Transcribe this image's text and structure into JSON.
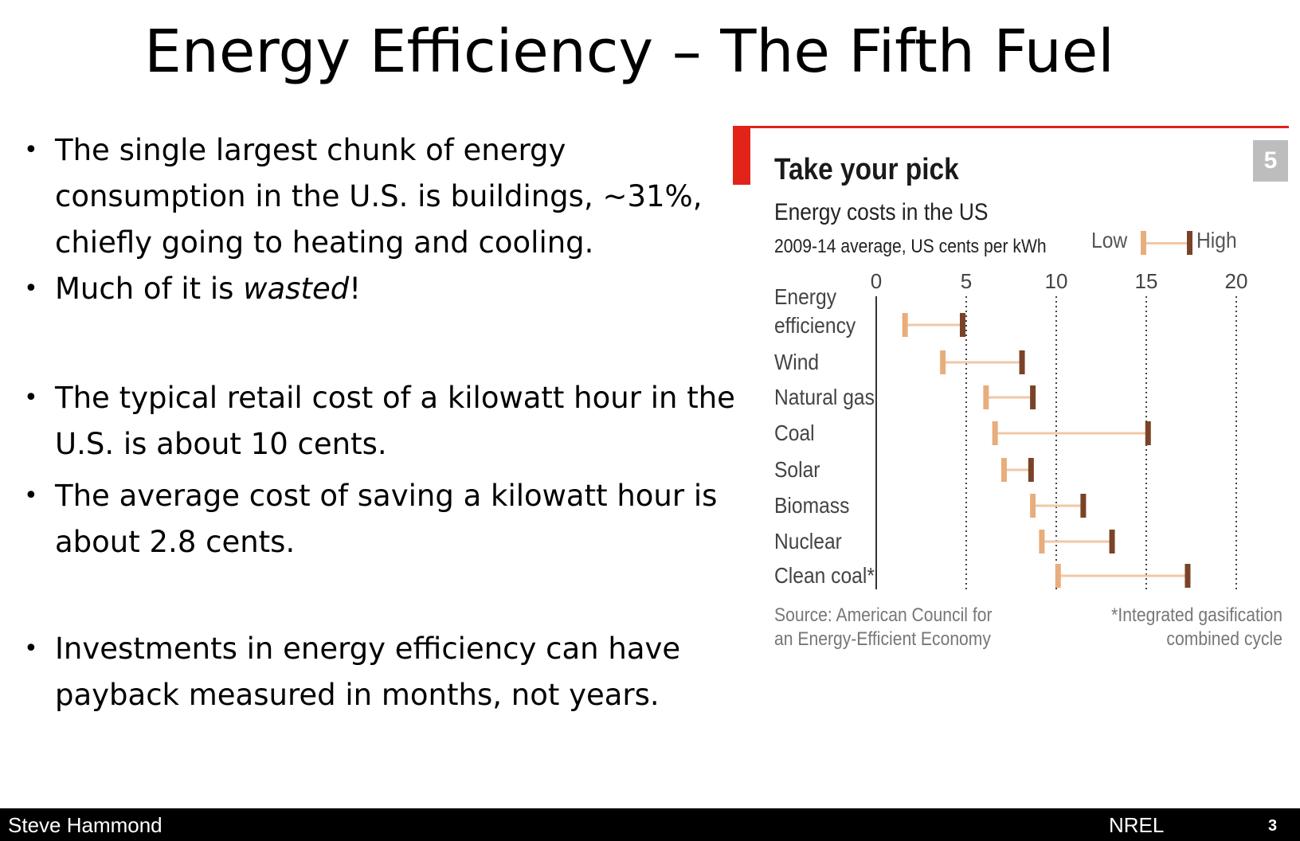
{
  "slide": {
    "title": "Energy Efficiency – The Fifth Fuel"
  },
  "bullets": [
    {
      "text": "The single largest chunk of energy consumption in the U.S. is buildings, ~31%, chiefly going to heating and cooling."
    },
    {
      "pre": "Much of it is ",
      "em": "wasted",
      "post": "!"
    },
    {
      "text": "The typical retail cost of a kilowatt hour in the U.S. is about 10 cents."
    },
    {
      "text": "The average cost of saving a kilowatt hour is about 2.8 cents."
    },
    {
      "text": "Investments in energy efficiency can have payback measured in months, not years."
    }
  ],
  "bullet_glyph": "•",
  "panel": {
    "number": "5",
    "source": "Source: American Council for\nan Energy-Efficient Economy",
    "footnote": "*Integrated gasification\ncombined cycle",
    "colors": {
      "accent_red": "#e2231a",
      "badge_gray": "#bdbdbd",
      "low": "#e8ad7c",
      "range_line": "#f2c7a5",
      "high": "#7a4327",
      "axis": "#333333"
    }
  },
  "chart_data": {
    "type": "range",
    "title": "Take your pick",
    "subtitle": "Energy costs in the US",
    "units": "2009-14 average, US cents per kWh",
    "legend": {
      "low": "Low",
      "high": "High",
      "placement": "top-right"
    },
    "xlim": [
      0,
      20
    ],
    "xticks": [
      0,
      5,
      10,
      15,
      20
    ],
    "grid": "dotted vertical",
    "categories": [
      [
        "Energy",
        "efficiency"
      ],
      [
        "Wind"
      ],
      [
        "Natural gas"
      ],
      [
        "Coal"
      ],
      [
        "Solar"
      ],
      [
        "Biomass"
      ],
      [
        "Nuclear"
      ],
      [
        "Clean coal*"
      ]
    ],
    "low": [
      1.6,
      3.7,
      6.1,
      6.6,
      7.1,
      8.7,
      9.2,
      10.1
    ],
    "high": [
      4.8,
      8.1,
      8.7,
      15.1,
      8.6,
      11.5,
      13.1,
      17.3
    ]
  },
  "footer": {
    "author": "Steve Hammond",
    "org": "NREL",
    "page": "3"
  }
}
